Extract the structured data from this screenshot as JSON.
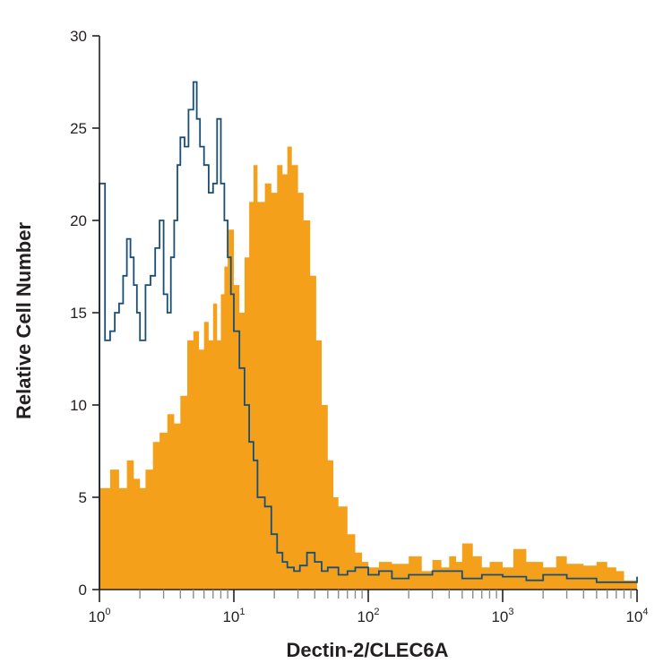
{
  "chart_data": {
    "type": "area",
    "xscale": "log",
    "xlabel": "Dectin-2/CLEC6A",
    "ylabel": "Relative Cell Number",
    "xlim": [
      1,
      10000
    ],
    "ylim": [
      0,
      30
    ],
    "xticks": [
      {
        "base": "10",
        "exp": "0"
      },
      {
        "base": "10",
        "exp": "1"
      },
      {
        "base": "10",
        "exp": "2"
      },
      {
        "base": "10",
        "exp": "3"
      },
      {
        "base": "10",
        "exp": "4"
      }
    ],
    "yticks": [
      "0",
      "5",
      "10",
      "15",
      "20",
      "25",
      "30"
    ],
    "grid": false,
    "legend": "none",
    "series": [
      {
        "style": "filled",
        "color": "#f5a01a",
        "x": [
          1,
          1.2,
          1.4,
          1.6,
          1.8,
          2,
          2.2,
          2.5,
          2.8,
          3.2,
          3.6,
          4,
          4.5,
          5,
          5.5,
          6,
          6.5,
          7,
          7.5,
          8,
          8.5,
          9,
          10,
          11,
          12,
          13,
          14,
          15,
          17,
          19,
          21,
          23,
          25,
          27,
          30,
          33,
          37,
          41,
          45,
          50,
          55,
          60,
          70,
          80,
          90,
          100,
          120,
          150,
          200,
          250,
          300,
          350,
          400,
          450,
          500,
          600,
          700,
          800,
          1000,
          1200,
          1500,
          2000,
          2500,
          3000,
          4000,
          5000,
          6000,
          7000,
          8000
        ],
        "y": [
          5.5,
          6.5,
          5.5,
          7,
          6,
          5.5,
          6.5,
          8,
          8.5,
          9.5,
          9,
          10.5,
          13.5,
          14,
          13,
          14.5,
          13.5,
          15.5,
          13.5,
          16,
          17.5,
          19.5,
          16.5,
          15,
          18,
          21,
          23,
          21,
          22,
          21.5,
          23,
          22.5,
          24,
          23,
          21.5,
          20,
          17,
          13.5,
          10,
          7,
          5,
          4.5,
          3,
          2,
          1.5,
          1.2,
          1.5,
          1.4,
          1.8,
          1,
          1.6,
          1.2,
          1.8,
          1.5,
          2.5,
          1.8,
          1.2,
          1.5,
          1.2,
          2.2,
          1.5,
          1.2,
          1.8,
          1.4,
          1.3,
          1.5,
          1.2,
          1,
          0.5
        ]
      },
      {
        "style": "outline",
        "color": "#1a4e74",
        "x": [
          1,
          1.1,
          1.2,
          1.3,
          1.4,
          1.5,
          1.6,
          1.7,
          1.8,
          1.9,
          2,
          2.2,
          2.4,
          2.6,
          2.8,
          3,
          3.2,
          3.4,
          3.6,
          3.8,
          4,
          4.3,
          4.6,
          5,
          5.3,
          5.6,
          6,
          6.5,
          7,
          7.5,
          8,
          8.5,
          9,
          9.5,
          10,
          11,
          12,
          13,
          14,
          15,
          17,
          19,
          21,
          23,
          25,
          28,
          31,
          35,
          40,
          45,
          50,
          60,
          70,
          80,
          100,
          120,
          150,
          200,
          300,
          500,
          700,
          1000,
          1500,
          2000,
          3000,
          5000,
          7000,
          10000
        ],
        "y": [
          22,
          13.5,
          14,
          15,
          15.5,
          17,
          19,
          18,
          16.5,
          15,
          13.5,
          16.5,
          17,
          18.5,
          20,
          16,
          15,
          18,
          20,
          23,
          24.5,
          24,
          26,
          27.5,
          25.5,
          24,
          23,
          21.5,
          22,
          25.5,
          22,
          20,
          18,
          16,
          14,
          12,
          10,
          8,
          7,
          5,
          4.5,
          3,
          2,
          1.5,
          1.2,
          1,
          1.3,
          2,
          1.5,
          1,
          1.2,
          0.8,
          1,
          1.2,
          0.8,
          1,
          0.6,
          0.8,
          1,
          0.6,
          0.8,
          0.7,
          0.5,
          0.8,
          0.6,
          0.4,
          0.4,
          0.7
        ]
      }
    ]
  }
}
